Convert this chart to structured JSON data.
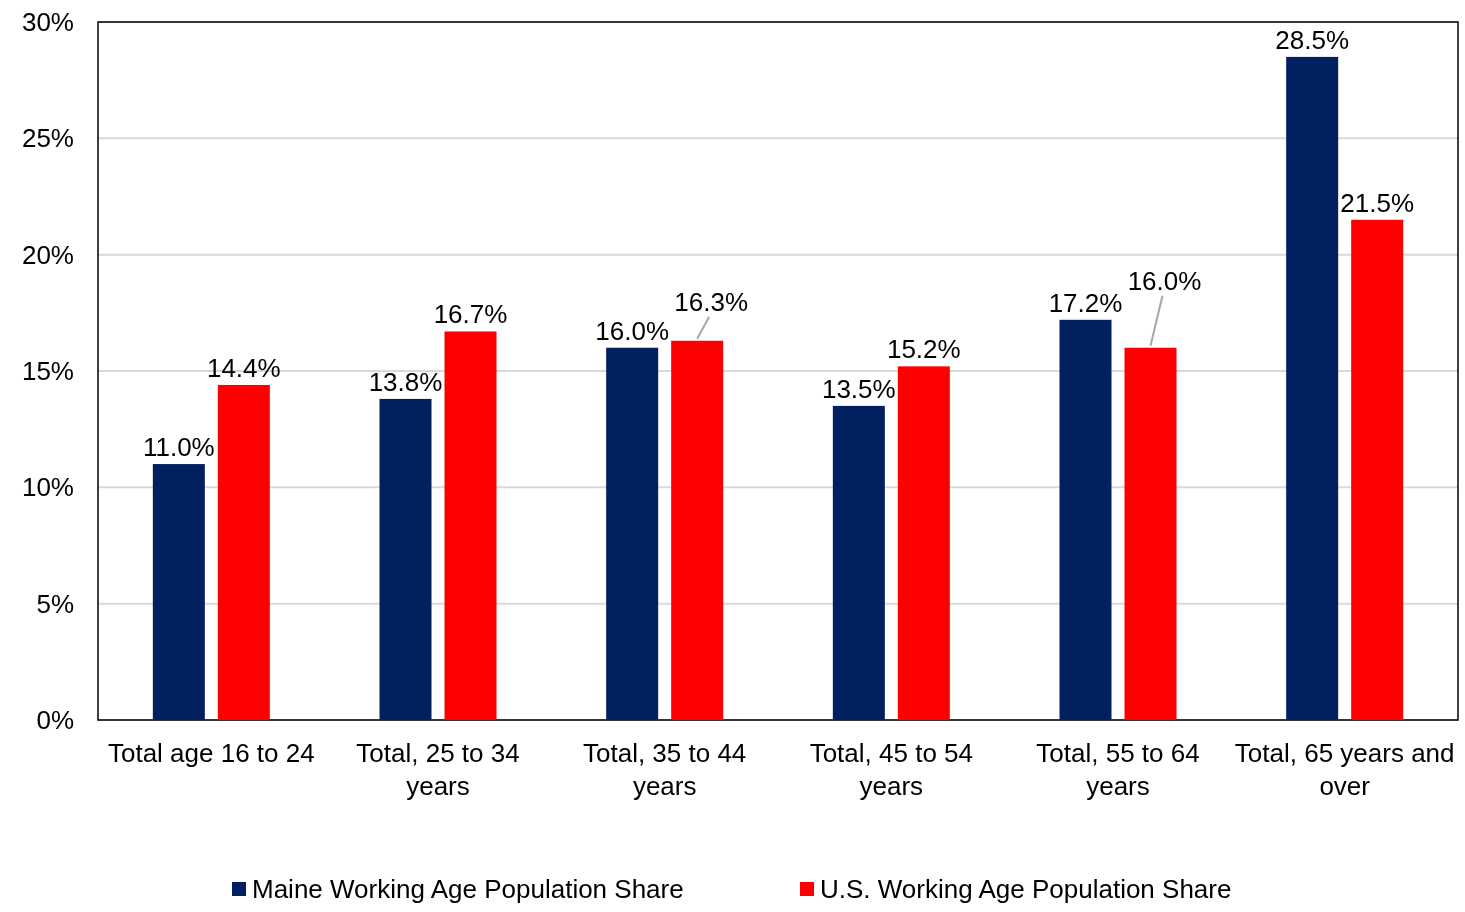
{
  "chart_data": {
    "type": "bar",
    "categories": [
      "Total age 16 to 24",
      "Total, 25 to 34 years",
      "Total, 35 to 44 years",
      "Total, 45 to 54 years",
      "Total, 55 to 64 years",
      "Total, 65 years and over"
    ],
    "series": [
      {
        "name": "Maine Working Age Population Share",
        "color": "#002060",
        "values": [
          11.0,
          13.8,
          16.0,
          13.5,
          17.2,
          28.5
        ],
        "value_labels": [
          "11.0%",
          "13.8%",
          "16.0%",
          "13.5%",
          "17.2%",
          "28.5%"
        ]
      },
      {
        "name": "U.S. Working Age Population Share",
        "color": "#ff0000",
        "values": [
          14.4,
          16.7,
          16.3,
          15.2,
          16.0,
          21.5
        ],
        "value_labels": [
          "14.4%",
          "16.7%",
          "16.3%",
          "15.2%",
          "16.0%",
          "21.5%"
        ]
      }
    ],
    "ylim": [
      0,
      30
    ],
    "yticks": [
      {
        "value": 0,
        "label": "0%"
      },
      {
        "value": 5,
        "label": "5%"
      },
      {
        "value": 10,
        "label": "10%"
      },
      {
        "value": 15,
        "label": "15%"
      },
      {
        "value": 20,
        "label": "20%"
      },
      {
        "value": 25,
        "label": "25%"
      },
      {
        "value": 30,
        "label": "30%"
      }
    ],
    "grid": "y",
    "legend": "bottom"
  }
}
